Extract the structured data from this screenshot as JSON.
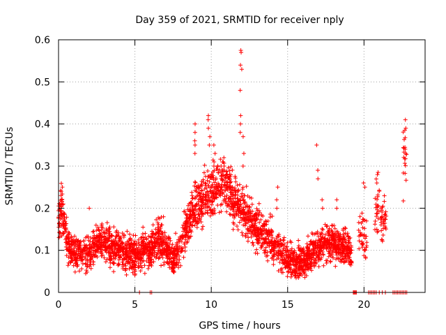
{
  "chart_data": {
    "type": "scatter",
    "title": "Day 359 of 2021, SRMTID for receiver nply",
    "xlabel": "GPS time / hours",
    "ylabel": "SRMTID / TECUs",
    "xlim": [
      0,
      24
    ],
    "ylim": [
      0,
      0.6
    ],
    "xticks": [
      0,
      5,
      10,
      15,
      20
    ],
    "xtick_labels": [
      "0",
      "5",
      "10",
      "15",
      "20"
    ],
    "yticks": [
      0,
      0.1,
      0.2,
      0.3,
      0.4,
      0.5,
      0.6
    ],
    "ytick_labels": [
      "0",
      "0.1",
      "0.2",
      "0.3",
      "0.4",
      "0.5",
      "0.6"
    ],
    "grid": true,
    "marker": "+",
    "series_color": "#ff0000",
    "baseline": [
      [
        0.0,
        0.18
      ],
      [
        0.2,
        0.2
      ],
      [
        0.4,
        0.15
      ],
      [
        0.6,
        0.11
      ],
      [
        1.0,
        0.095
      ],
      [
        2.0,
        0.09
      ],
      [
        2.6,
        0.12
      ],
      [
        3.0,
        0.115
      ],
      [
        3.5,
        0.105
      ],
      [
        4.0,
        0.1
      ],
      [
        5.0,
        0.09
      ],
      [
        6.0,
        0.1
      ],
      [
        6.5,
        0.13
      ],
      [
        7.0,
        0.11
      ],
      [
        7.5,
        0.08
      ],
      [
        8.0,
        0.11
      ],
      [
        8.5,
        0.17
      ],
      [
        9.0,
        0.2
      ],
      [
        9.5,
        0.22
      ],
      [
        10.0,
        0.24
      ],
      [
        10.5,
        0.25
      ],
      [
        11.0,
        0.26
      ],
      [
        11.5,
        0.22
      ],
      [
        12.0,
        0.2
      ],
      [
        12.5,
        0.17
      ],
      [
        13.0,
        0.15
      ],
      [
        13.5,
        0.13
      ],
      [
        14.0,
        0.12
      ],
      [
        14.5,
        0.1
      ],
      [
        15.0,
        0.08
      ],
      [
        15.5,
        0.07
      ],
      [
        16.0,
        0.075
      ],
      [
        16.5,
        0.09
      ],
      [
        17.0,
        0.11
      ],
      [
        17.5,
        0.12
      ],
      [
        18.0,
        0.12
      ],
      [
        18.5,
        0.11
      ],
      [
        19.0,
        0.1
      ],
      [
        19.2,
        0.09
      ]
    ],
    "spread": 0.035,
    "density_per_hour": 150,
    "clusters": [
      {
        "x_range": [
          19.6,
          20.2
        ],
        "y_center": 0.14,
        "spread": 0.05,
        "count": 40
      },
      {
        "x_range": [
          20.7,
          21.0
        ],
        "y_center": 0.2,
        "spread": 0.05,
        "count": 25
      },
      {
        "x_range": [
          21.1,
          21.5
        ],
        "y_center": 0.17,
        "spread": 0.04,
        "count": 35
      },
      {
        "x_range": [
          22.55,
          22.8
        ],
        "y_center": 0.3,
        "spread": 0.07,
        "count": 18
      }
    ],
    "peaks": [
      {
        "x": 0.2,
        "values": [
          0.25,
          0.24,
          0.23,
          0.22
        ]
      },
      {
        "x": 2.05,
        "values": [
          0.2
        ]
      },
      {
        "x": 8.95,
        "values": [
          0.4,
          0.38,
          0.36,
          0.35,
          0.33
        ]
      },
      {
        "x": 9.85,
        "values": [
          0.42,
          0.41,
          0.39,
          0.37,
          0.35
        ]
      },
      {
        "x": 10.2,
        "values": [
          0.35,
          0.33,
          0.31,
          0.3
        ]
      },
      {
        "x": 10.8,
        "values": [
          0.32,
          0.3,
          0.29,
          0.31
        ]
      },
      {
        "x": 11.95,
        "values": [
          0.575,
          0.57,
          0.54,
          0.53,
          0.48,
          0.42,
          0.4,
          0.38
        ]
      },
      {
        "x": 12.1,
        "values": [
          0.37,
          0.33,
          0.3
        ]
      },
      {
        "x": 14.3,
        "values": [
          0.25,
          0.22,
          0.2
        ]
      },
      {
        "x": 16.95,
        "values": [
          0.35,
          0.29,
          0.27
        ]
      },
      {
        "x": 17.3,
        "values": [
          0.22,
          0.2
        ]
      },
      {
        "x": 18.2,
        "values": [
          0.22,
          0.2
        ]
      },
      {
        "x": 20.0,
        "values": [
          0.26,
          0.25
        ]
      },
      {
        "x": 20.9,
        "values": [
          0.28,
          0.285,
          0.26
        ]
      },
      {
        "x": 22.7,
        "values": [
          0.41,
          0.39,
          0.34,
          0.33
        ]
      }
    ],
    "zero_values_x": [
      5.3,
      6.0,
      6.1,
      19.3,
      19.35,
      19.4,
      19.45,
      19.5,
      20.3,
      20.4,
      20.5,
      20.6,
      20.7,
      20.8,
      21.0,
      21.2,
      21.4,
      21.9,
      22.0,
      22.1,
      22.2,
      22.3,
      22.4,
      22.5,
      22.6,
      22.7,
      22.8
    ],
    "data_gaps_hours": [
      [
        19.2,
        19.6
      ],
      [
        21.6,
        22.5
      ]
    ]
  }
}
